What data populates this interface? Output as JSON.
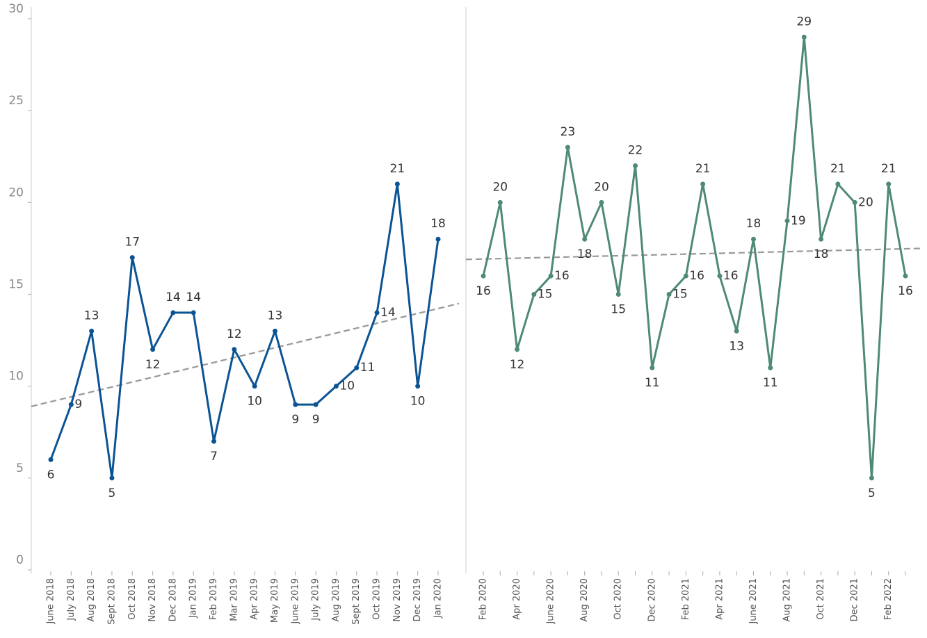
{
  "chart_data": [
    {
      "type": "line",
      "color": "#0b5394",
      "categories": [
        "June 2018",
        "July 2018",
        "Aug 2018",
        "Sept 2018",
        "Oct 2018",
        "Nov 2018",
        "Dec 2018",
        "Jan 2019",
        "Feb 2019",
        "Mar 2019",
        "Apr 2019",
        "May 2019",
        "June 2019",
        "July 2019",
        "Aug 2019",
        "Sept 2019",
        "Oct 2019",
        "Nov 2019",
        "Dec 2019",
        "Jan 2020"
      ],
      "values": [
        6,
        9,
        13,
        5,
        17,
        12,
        14,
        14,
        7,
        12,
        10,
        13,
        9,
        9,
        10,
        11,
        14,
        21,
        10,
        18
      ],
      "trend": [
        8.9,
        14.5
      ],
      "ylim": [
        0,
        30
      ],
      "yticks": [
        0,
        5,
        10,
        15,
        20,
        25,
        30
      ]
    },
    {
      "type": "line",
      "color": "#4e8a74",
      "categories": [
        "Feb 2020",
        null,
        "Apr 2020",
        null,
        "June 2020",
        null,
        "Aug 2020",
        null,
        "Oct 2020",
        null,
        "Dec 2020",
        null,
        "Feb 2021",
        null,
        "Apr 2021",
        null,
        "June 2021",
        null,
        "Aug 2021",
        null,
        "Oct 2021",
        null,
        "Dec 2021",
        null,
        "Feb 2022",
        null
      ],
      "values": [
        16,
        20,
        12,
        15,
        16,
        23,
        18,
        20,
        15,
        22,
        11,
        15,
        16,
        21,
        16,
        13,
        18,
        11,
        19,
        29,
        18,
        21,
        20,
        5,
        21,
        16
      ],
      "trend": [
        16.9,
        17.5
      ],
      "ylim": [
        0,
        30
      ]
    }
  ]
}
